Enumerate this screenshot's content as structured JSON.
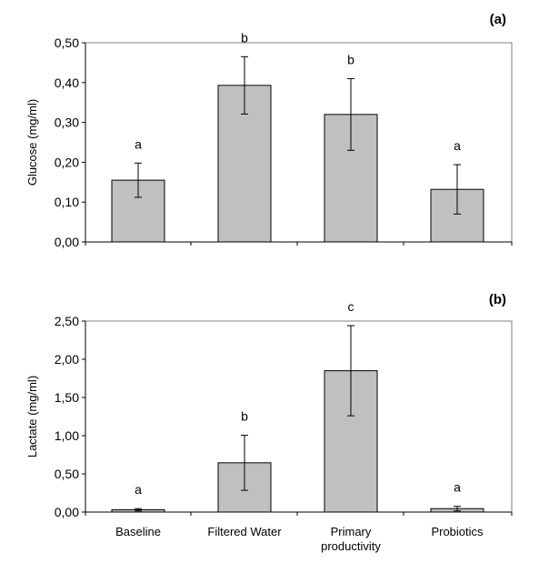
{
  "chart_data": [
    {
      "panel_label": "(a)",
      "type": "bar",
      "ylabel": "Glucose (mg/ml)",
      "ylim": [
        0,
        0.5
      ],
      "yticks": [
        "0,00",
        "0,10",
        "0,20",
        "0,30",
        "0,40",
        "0,50"
      ],
      "categories": [
        "Baseline",
        "Filtered Water",
        "Primary productivity",
        "Probiotics"
      ],
      "values": [
        0.155,
        0.393,
        0.32,
        0.132
      ],
      "error": [
        0.043,
        0.072,
        0.09,
        0.062
      ],
      "significance_letters": [
        "a",
        "b",
        "b",
        "a"
      ],
      "bar_color": "#c0c0c0",
      "frame": true,
      "grid": false
    },
    {
      "panel_label": "(b)",
      "type": "bar",
      "ylabel": "Lactate (mg/ml)",
      "ylim": [
        0,
        2.5
      ],
      "yticks": [
        "0,00",
        "0,50",
        "1,00",
        "1,50",
        "2,00",
        "2,50"
      ],
      "categories": [
        "Baseline",
        "Filtered Water",
        "Primary productivity",
        "Probiotics"
      ],
      "category_lines": [
        [
          "Baseline"
        ],
        [
          "Filtered Water"
        ],
        [
          "Primary",
          "productivity"
        ],
        [
          "Probiotics"
        ]
      ],
      "values": [
        0.03,
        0.645,
        1.85,
        0.045
      ],
      "error": [
        0.015,
        0.36,
        0.59,
        0.03
      ],
      "significance_letters": [
        "a",
        "b",
        "c",
        "a"
      ],
      "bar_color": "#c0c0c0",
      "frame": true,
      "grid": false
    }
  ]
}
